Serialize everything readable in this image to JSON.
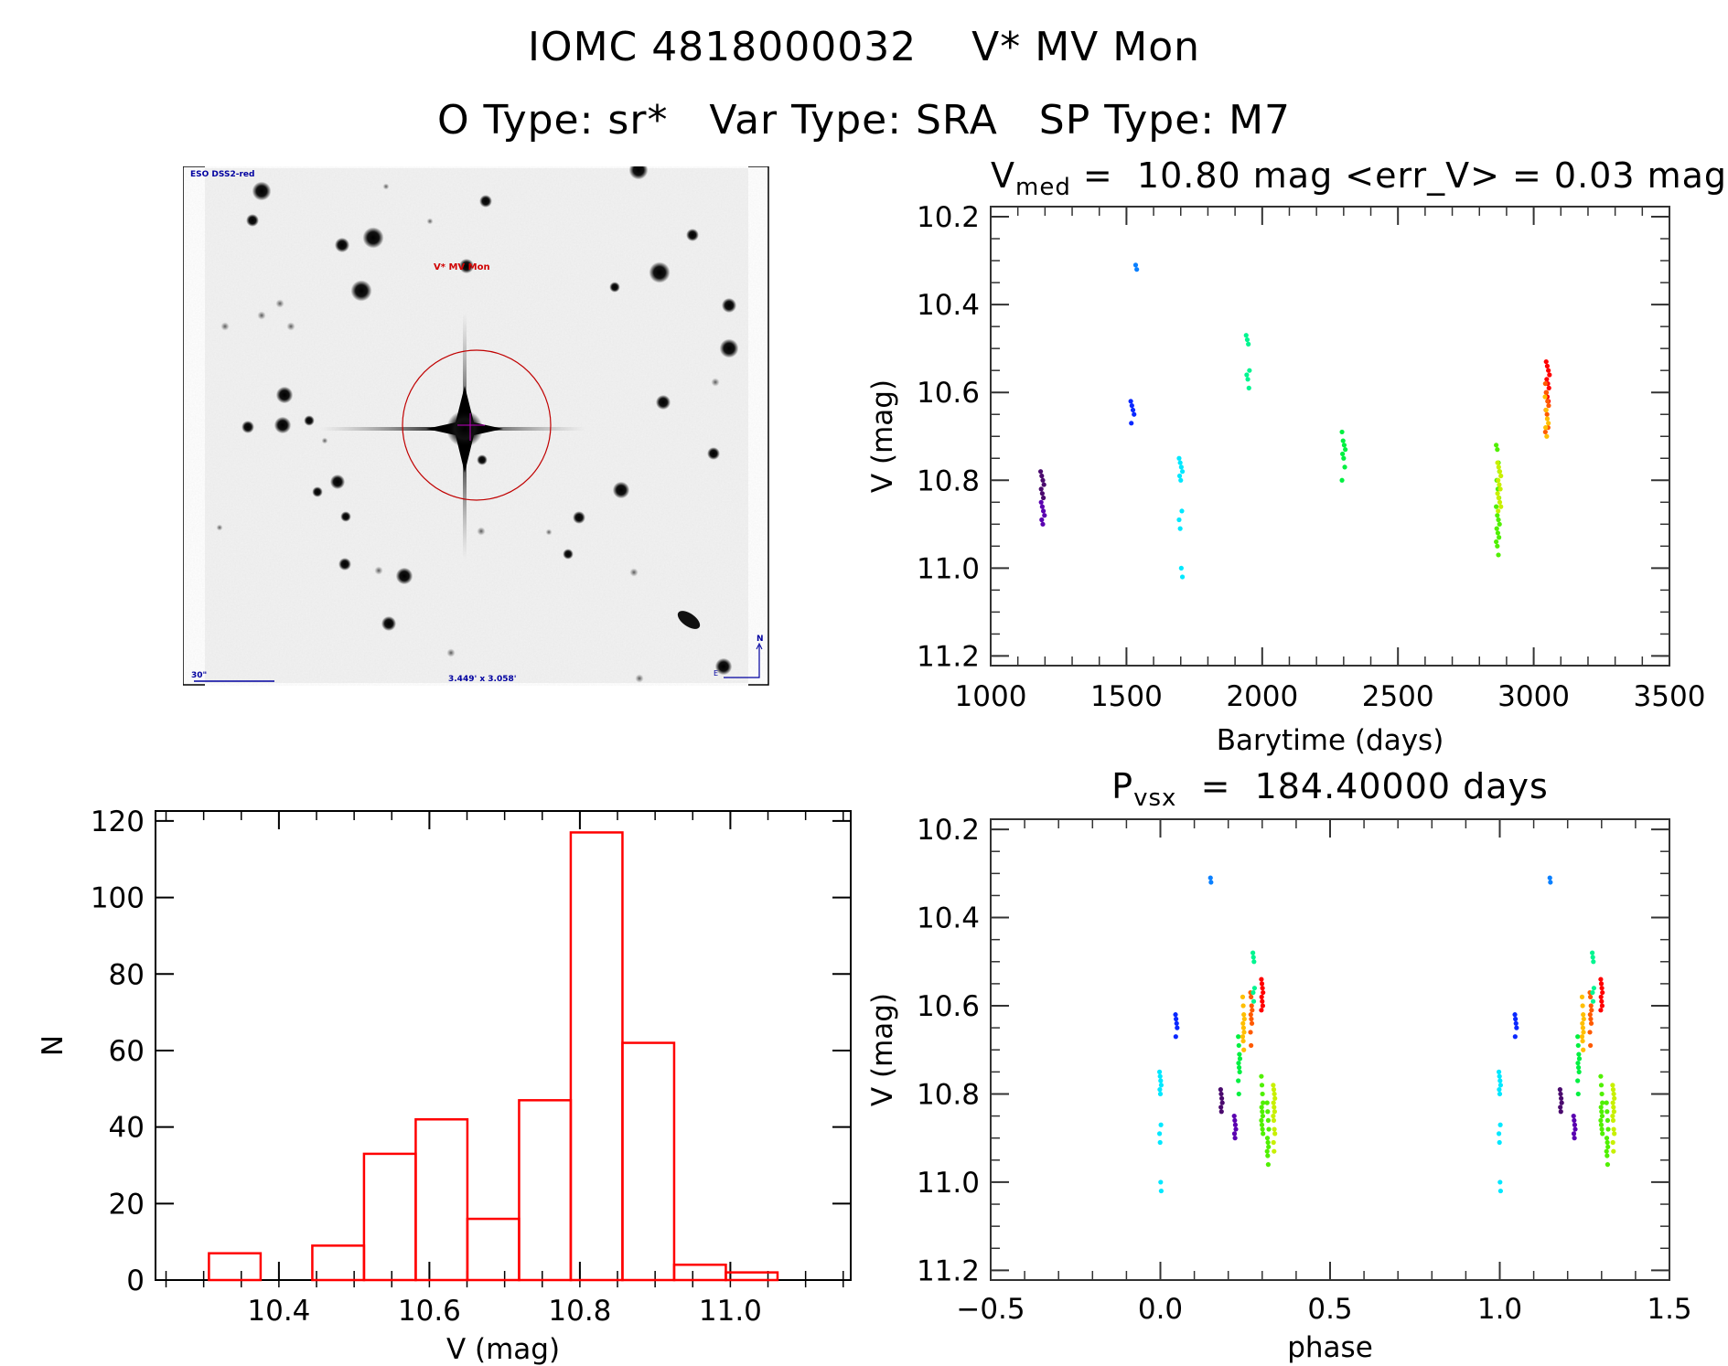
{
  "header": {
    "title_line1": "IOMC 4818000032    V* MV Mon",
    "title_line2": "O Type: sr*   Var Type: SRA   SP Type: M7"
  },
  "finder_chart": {
    "survey_label": "ESO DSS2-red",
    "target_label": "V* MV Mon",
    "scale_label": "30\"",
    "field_label": "3.449' x 3.058'",
    "north_label": "N",
    "east_label": "E"
  },
  "chart_data": [
    {
      "type": "scatter",
      "id": "lightcurve",
      "title_prefix": "V",
      "title_sub": "med",
      "title_rest": " =  10.80 mag <err_V> = 0.03 mag",
      "xlabel": "Barytime (days)",
      "ylabel": "V (mag)",
      "xlim": [
        1000,
        3500
      ],
      "ylim": [
        10.177,
        11.222
      ],
      "y_inverted": true,
      "xticks": [
        1000,
        1500,
        2000,
        2500,
        3000,
        3500
      ],
      "xtick_labels": [
        "1000",
        "1500",
        "2000",
        "2500",
        "3000",
        "3500"
      ],
      "yticks": [
        10.2,
        10.4,
        10.6,
        10.8,
        11.0,
        11.2
      ],
      "ytick_labels": [
        "10.2",
        "10.4",
        "10.6",
        "10.8",
        "11.0",
        "11.2"
      ],
      "groups": [
        {
          "t": 1190,
          "color": "#4a0a6e",
          "V": [
            10.78,
            10.79,
            10.8,
            10.81,
            10.82,
            10.83,
            10.84
          ]
        },
        {
          "t": 1192,
          "color": "#5a00b0",
          "V": [
            10.85,
            10.86,
            10.87,
            10.88,
            10.89,
            10.9
          ]
        },
        {
          "t": 1540,
          "color": "#0a80ff",
          "V": [
            10.31,
            10.32
          ]
        },
        {
          "t": 1522,
          "color": "#0a28ff",
          "V": [
            10.62,
            10.63,
            10.64,
            10.65,
            10.67
          ]
        },
        {
          "t": 1700,
          "color": "#00e8ff",
          "V": [
            10.75,
            10.76,
            10.77,
            10.78,
            10.79,
            10.8,
            10.87,
            10.89,
            10.91,
            11.0,
            11.02
          ]
        },
        {
          "t": 1947,
          "color": "#00f590",
          "V": [
            10.47,
            10.48,
            10.49,
            10.55,
            10.56,
            10.57,
            10.59
          ]
        },
        {
          "t": 2300,
          "color": "#00f040",
          "V": [
            10.69,
            10.71,
            10.72,
            10.73,
            10.74,
            10.75,
            10.77,
            10.8
          ]
        },
        {
          "t": 2868,
          "color": "#50f000",
          "V": [
            10.72,
            10.73,
            10.76,
            10.78,
            10.8,
            10.82,
            10.84,
            10.86,
            10.88,
            10.89,
            10.9,
            10.91,
            10.92,
            10.93,
            10.94,
            10.95,
            10.97
          ]
        },
        {
          "t": 2873,
          "color": "#c8f000",
          "V": [
            10.76,
            10.77,
            10.78,
            10.79,
            10.8,
            10.81,
            10.82,
            10.83,
            10.84,
            10.85,
            10.86,
            10.87
          ]
        },
        {
          "t": 3052,
          "color": "#ff0000",
          "V": [
            10.53,
            10.54,
            10.55,
            10.56,
            10.57,
            10.58,
            10.59,
            10.6,
            10.61,
            10.62
          ]
        },
        {
          "t": 3049,
          "color": "#ff5a00",
          "V": [
            10.58,
            10.6,
            10.62,
            10.63,
            10.64,
            10.65,
            10.68,
            10.69
          ]
        },
        {
          "t": 3048,
          "color": "#ffbe00",
          "V": [
            10.61,
            10.64,
            10.66,
            10.67,
            10.68,
            10.7
          ]
        }
      ]
    },
    {
      "type": "scatter",
      "id": "phased",
      "title_prefix": "P",
      "title_sub": "vsx",
      "title_rest": "  =  184.40000 days",
      "xlabel": "phase",
      "ylabel": "V (mag)",
      "xlim": [
        -0.5,
        1.5
      ],
      "ylim": [
        10.177,
        11.222
      ],
      "y_inverted": true,
      "xticks": [
        -0.5,
        0.0,
        0.5,
        1.0,
        1.5
      ],
      "xtick_labels": [
        "−0.5",
        "0.0",
        "0.5",
        "1.0",
        "1.5"
      ],
      "yticks": [
        10.2,
        10.4,
        10.6,
        10.8,
        11.0,
        11.2
      ],
      "ytick_labels": [
        "10.2",
        "10.4",
        "10.6",
        "10.8",
        "11.0",
        "11.2"
      ],
      "repeat_offset": 1.0,
      "groups": [
        {
          "phase": 0.0,
          "color": "#00e8ff",
          "V": [
            10.75,
            10.76,
            10.77,
            10.78,
            10.79,
            10.8,
            10.87,
            10.89,
            10.91,
            11.0,
            11.02
          ]
        },
        {
          "phase": 0.047,
          "color": "#0a28ff",
          "V": [
            10.62,
            10.63,
            10.64,
            10.65,
            10.67
          ]
        },
        {
          "phase": 0.15,
          "color": "#0a80ff",
          "V": [
            10.31,
            10.32
          ]
        },
        {
          "phase": 0.18,
          "color": "#4a0a6e",
          "V": [
            10.79,
            10.8,
            10.81,
            10.82,
            10.83,
            10.84
          ]
        },
        {
          "phase": 0.22,
          "color": "#5a00b0",
          "V": [
            10.85,
            10.86,
            10.87,
            10.88,
            10.89,
            10.9
          ]
        },
        {
          "phase": 0.232,
          "color": "#00f040",
          "V": [
            10.67,
            10.69,
            10.71,
            10.72,
            10.73,
            10.74,
            10.75,
            10.77,
            10.8
          ]
        },
        {
          "phase": 0.245,
          "color": "#ffbe00",
          "V": [
            10.58,
            10.6,
            10.62,
            10.63,
            10.64,
            10.65,
            10.66,
            10.67,
            10.68,
            10.7
          ]
        },
        {
          "phase": 0.268,
          "color": "#ff5a00",
          "V": [
            10.57,
            10.58,
            10.6,
            10.61,
            10.62,
            10.63,
            10.64,
            10.66,
            10.69
          ]
        },
        {
          "phase": 0.275,
          "color": "#00f590",
          "V": [
            10.48,
            10.49,
            10.5,
            10.56,
            10.57,
            10.59
          ]
        },
        {
          "phase": 0.3,
          "color": "#ff0000",
          "V": [
            10.54,
            10.55,
            10.56,
            10.57,
            10.58,
            10.59,
            10.6,
            10.61
          ]
        },
        {
          "phase": 0.3,
          "color": "#50f000",
          "V": [
            10.76,
            10.78,
            10.8,
            10.82,
            10.83,
            10.84,
            10.85,
            10.86,
            10.87,
            10.88,
            10.89
          ]
        },
        {
          "phase": 0.317,
          "color": "#50f000",
          "V": [
            10.82,
            10.84,
            10.86,
            10.88,
            10.9,
            10.91,
            10.92,
            10.93,
            10.94,
            10.96
          ]
        },
        {
          "phase": 0.335,
          "color": "#c8f000",
          "V": [
            10.78,
            10.79,
            10.8,
            10.81,
            10.82,
            10.83,
            10.84,
            10.85,
            10.86,
            10.88,
            10.89,
            10.91,
            10.93
          ]
        }
      ]
    },
    {
      "type": "bar",
      "id": "histogram",
      "xlabel": "V (mag)",
      "ylabel": "N",
      "xlim": [
        10.236,
        11.16
      ],
      "ylim": [
        0,
        122.6
      ],
      "xticks": [
        10.4,
        10.6,
        10.8,
        11.0
      ],
      "xtick_labels": [
        "10.4",
        "10.6",
        "10.8",
        "11.0"
      ],
      "yticks": [
        0,
        20,
        40,
        60,
        80,
        100,
        120
      ],
      "ytick_labels": [
        "0",
        "20",
        "40",
        "60",
        "80",
        "100",
        "120"
      ],
      "bin_start": 10.307,
      "bin_width": 0.0687,
      "counts": [
        7,
        0,
        9,
        33,
        42,
        16,
        47,
        117,
        62,
        4,
        2
      ],
      "bar_color": "#ff0000"
    }
  ]
}
